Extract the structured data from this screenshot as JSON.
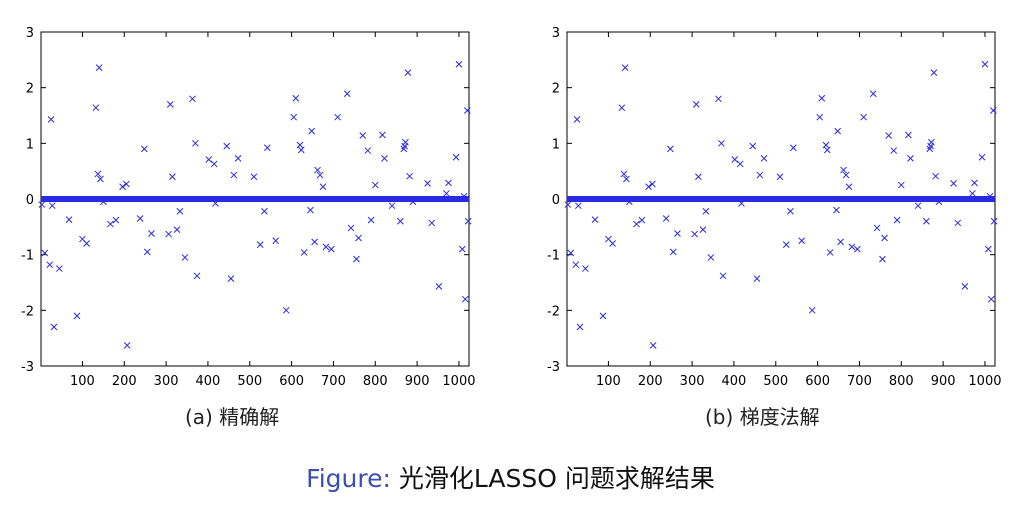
{
  "colors": {
    "marker": "#2a2ae0",
    "axis": "#000000",
    "caption_accent": "#3a4fb0"
  },
  "captions": {
    "a": "(a) 精确解",
    "b": "(b) 梯度法解"
  },
  "figure_caption": {
    "lead": "Figure:",
    "text": " 光滑化LASSO 问题求解结果"
  },
  "chart_data": [
    {
      "type": "scatter",
      "title": "",
      "xlabel": "",
      "ylabel": "",
      "xlim": [
        1,
        1024
      ],
      "ylim": [
        -3,
        3
      ],
      "xticks": [
        100,
        200,
        300,
        400,
        500,
        600,
        700,
        800,
        900,
        1000
      ],
      "yticks": [
        -3,
        -2,
        -1,
        0,
        1,
        2,
        3
      ],
      "marker": "x",
      "grid": false,
      "zero_line_n": 1024,
      "points": [
        [
          3,
          -0.1
        ],
        [
          10,
          -0.97
        ],
        [
          22,
          -1.18
        ],
        [
          25,
          1.43
        ],
        [
          28,
          -0.12
        ],
        [
          32,
          -2.3
        ],
        [
          45,
          -1.25
        ],
        [
          68,
          -0.37
        ],
        [
          87,
          -2.1
        ],
        [
          100,
          -0.72
        ],
        [
          110,
          -0.8
        ],
        [
          132,
          1.64
        ],
        [
          137,
          0.45
        ],
        [
          140,
          2.36
        ],
        [
          143,
          0.36
        ],
        [
          150,
          -0.05
        ],
        [
          167,
          -0.45
        ],
        [
          180,
          -0.38
        ],
        [
          196,
          0.22
        ],
        [
          205,
          0.27
        ],
        [
          207,
          -2.63
        ],
        [
          238,
          -0.35
        ],
        [
          248,
          0.9
        ],
        [
          255,
          -0.95
        ],
        [
          265,
          -0.62
        ],
        [
          306,
          -0.63
        ],
        [
          310,
          1.7
        ],
        [
          315,
          0.4
        ],
        [
          326,
          -0.55
        ],
        [
          333,
          -0.22
        ],
        [
          345,
          -1.05
        ],
        [
          363,
          1.8
        ],
        [
          370,
          1.0
        ],
        [
          374,
          -1.38
        ],
        [
          402,
          0.71
        ],
        [
          415,
          0.63
        ],
        [
          418,
          -0.08
        ],
        [
          445,
          0.95
        ],
        [
          455,
          -1.43
        ],
        [
          462,
          0.43
        ],
        [
          472,
          0.73
        ],
        [
          510,
          0.4
        ],
        [
          525,
          -0.82
        ],
        [
          535,
          -0.22
        ],
        [
          542,
          0.92
        ],
        [
          562,
          -0.75
        ],
        [
          587,
          -2.0
        ],
        [
          605,
          1.47
        ],
        [
          610,
          1.81
        ],
        [
          620,
          0.97
        ],
        [
          623,
          0.88
        ],
        [
          630,
          -0.96
        ],
        [
          645,
          -0.2
        ],
        [
          648,
          1.22
        ],
        [
          655,
          -0.77
        ],
        [
          662,
          0.52
        ],
        [
          668,
          0.43
        ],
        [
          675,
          0.22
        ],
        [
          682,
          -0.86
        ],
        [
          695,
          -0.9
        ],
        [
          710,
          1.47
        ],
        [
          733,
          1.89
        ],
        [
          742,
          -0.52
        ],
        [
          755,
          -1.08
        ],
        [
          760,
          -0.7
        ],
        [
          770,
          1.14
        ],
        [
          782,
          0.87
        ],
        [
          790,
          -0.38
        ],
        [
          800,
          0.25
        ],
        [
          817,
          1.15
        ],
        [
          822,
          0.73
        ],
        [
          840,
          -0.12
        ],
        [
          860,
          -0.4
        ],
        [
          868,
          0.9
        ],
        [
          870,
          0.95
        ],
        [
          872,
          1.02
        ],
        [
          878,
          2.27
        ],
        [
          882,
          0.41
        ],
        [
          890,
          -0.05
        ],
        [
          925,
          0.28
        ],
        [
          935,
          -0.43
        ],
        [
          952,
          -1.57
        ],
        [
          970,
          0.1
        ],
        [
          975,
          0.29
        ],
        [
          993,
          0.75
        ],
        [
          1000,
          2.42
        ],
        [
          1008,
          -0.9
        ],
        [
          1012,
          0.05
        ],
        [
          1015,
          -1.8
        ],
        [
          1020,
          1.59
        ],
        [
          1022,
          -0.4
        ]
      ]
    },
    {
      "type": "scatter",
      "title": "",
      "xlabel": "",
      "ylabel": "",
      "xlim": [
        1,
        1024
      ],
      "ylim": [
        -3,
        3
      ],
      "xticks": [
        100,
        200,
        300,
        400,
        500,
        600,
        700,
        800,
        900,
        1000
      ],
      "yticks": [
        -3,
        -2,
        -1,
        0,
        1,
        2,
        3
      ],
      "marker": "x",
      "grid": false,
      "zero_line_n": 1024,
      "points": [
        [
          3,
          -0.1
        ],
        [
          10,
          -0.97
        ],
        [
          22,
          -1.18
        ],
        [
          25,
          1.43
        ],
        [
          28,
          -0.12
        ],
        [
          32,
          -2.3
        ],
        [
          45,
          -1.25
        ],
        [
          68,
          -0.37
        ],
        [
          87,
          -2.1
        ],
        [
          100,
          -0.72
        ],
        [
          110,
          -0.8
        ],
        [
          132,
          1.64
        ],
        [
          137,
          0.45
        ],
        [
          140,
          2.36
        ],
        [
          143,
          0.36
        ],
        [
          150,
          -0.05
        ],
        [
          167,
          -0.45
        ],
        [
          180,
          -0.38
        ],
        [
          196,
          0.22
        ],
        [
          205,
          0.27
        ],
        [
          207,
          -2.63
        ],
        [
          238,
          -0.35
        ],
        [
          248,
          0.9
        ],
        [
          255,
          -0.95
        ],
        [
          265,
          -0.62
        ],
        [
          306,
          -0.63
        ],
        [
          310,
          1.7
        ],
        [
          315,
          0.4
        ],
        [
          326,
          -0.55
        ],
        [
          333,
          -0.22
        ],
        [
          345,
          -1.05
        ],
        [
          363,
          1.8
        ],
        [
          370,
          1.0
        ],
        [
          374,
          -1.38
        ],
        [
          402,
          0.71
        ],
        [
          415,
          0.63
        ],
        [
          418,
          -0.08
        ],
        [
          445,
          0.95
        ],
        [
          455,
          -1.43
        ],
        [
          462,
          0.43
        ],
        [
          472,
          0.73
        ],
        [
          510,
          0.4
        ],
        [
          525,
          -0.82
        ],
        [
          535,
          -0.22
        ],
        [
          542,
          0.92
        ],
        [
          562,
          -0.75
        ],
        [
          587,
          -2.0
        ],
        [
          605,
          1.47
        ],
        [
          610,
          1.81
        ],
        [
          620,
          0.97
        ],
        [
          623,
          0.88
        ],
        [
          630,
          -0.96
        ],
        [
          645,
          -0.2
        ],
        [
          648,
          1.22
        ],
        [
          655,
          -0.77
        ],
        [
          662,
          0.52
        ],
        [
          668,
          0.43
        ],
        [
          675,
          0.22
        ],
        [
          682,
          -0.86
        ],
        [
          695,
          -0.9
        ],
        [
          710,
          1.47
        ],
        [
          733,
          1.89
        ],
        [
          742,
          -0.52
        ],
        [
          755,
          -1.08
        ],
        [
          760,
          -0.7
        ],
        [
          770,
          1.14
        ],
        [
          782,
          0.87
        ],
        [
          790,
          -0.38
        ],
        [
          800,
          0.25
        ],
        [
          817,
          1.15
        ],
        [
          822,
          0.73
        ],
        [
          840,
          -0.12
        ],
        [
          860,
          -0.4
        ],
        [
          868,
          0.9
        ],
        [
          870,
          0.95
        ],
        [
          872,
          1.02
        ],
        [
          878,
          2.27
        ],
        [
          882,
          0.41
        ],
        [
          890,
          -0.05
        ],
        [
          925,
          0.28
        ],
        [
          935,
          -0.43
        ],
        [
          952,
          -1.57
        ],
        [
          970,
          0.1
        ],
        [
          975,
          0.29
        ],
        [
          993,
          0.75
        ],
        [
          1000,
          2.42
        ],
        [
          1008,
          -0.9
        ],
        [
          1012,
          0.05
        ],
        [
          1015,
          -1.8
        ],
        [
          1020,
          1.59
        ],
        [
          1022,
          -0.4
        ]
      ]
    }
  ]
}
